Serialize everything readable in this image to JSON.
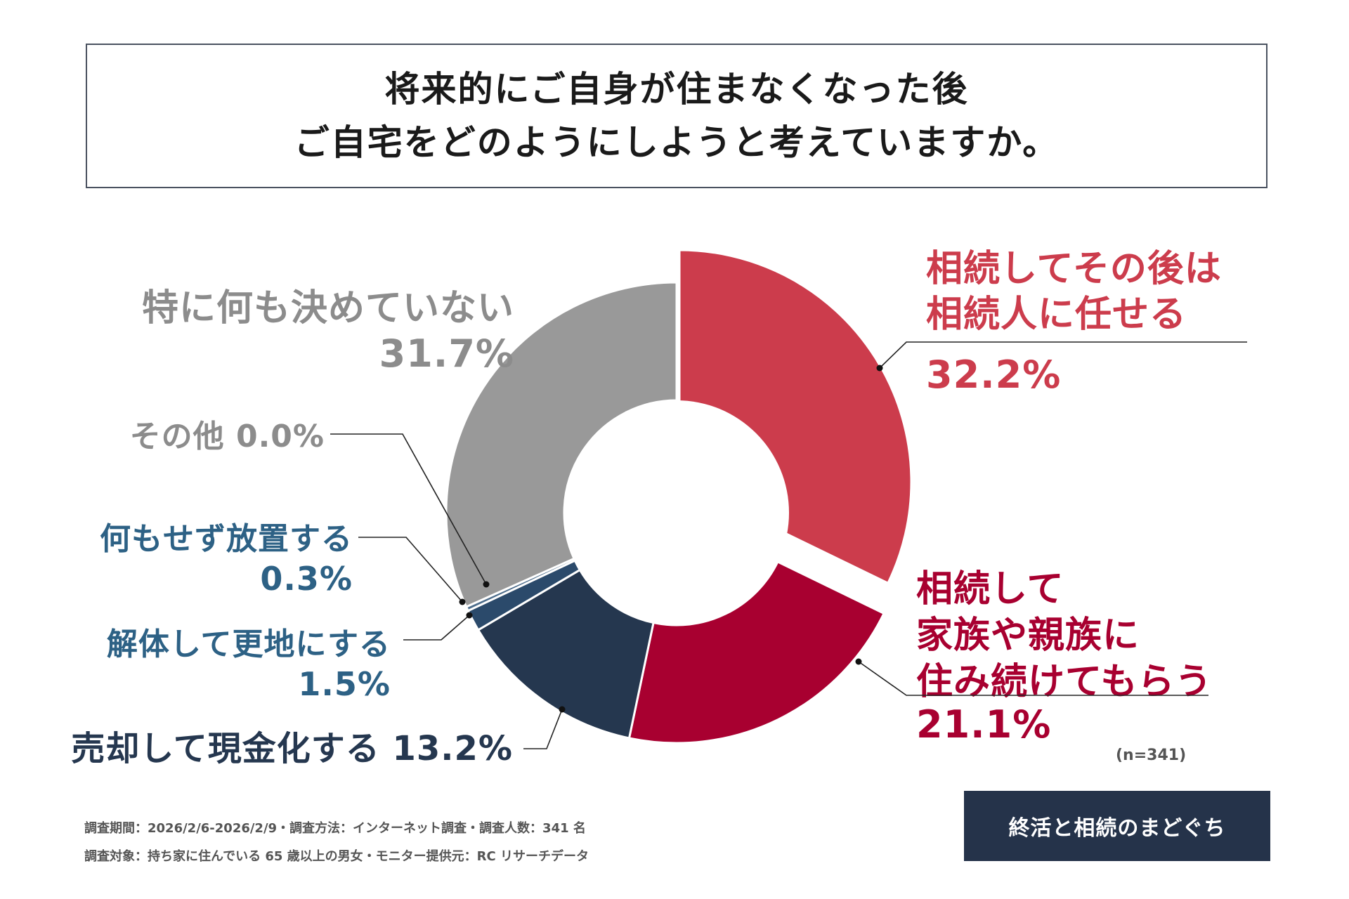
{
  "title": {
    "line1": "将来的にご自身が住まなくなった後",
    "line2": "ご自宅をどのようにしようと考えていますか。"
  },
  "chart_data": {
    "type": "pie",
    "subtype": "donut",
    "title": "将来的にご自身が住まなくなった後 ご自宅をどのようにしようと考えていますか。",
    "sample_size": "(n=341)",
    "slices": [
      {
        "label": "相続してその後は相続人に任せる",
        "label_lines": [
          "相続してその後は",
          "相続人に任せる"
        ],
        "value": 32.2,
        "value_label": "32.2%",
        "color": "#cc3c4c",
        "text_color": "#cc3c4c"
      },
      {
        "label": "相続して家族や親族に住み続けてもらう",
        "label_lines": [
          "相続して",
          "家族や親族に",
          "住み続けてもらう"
        ],
        "value": 21.1,
        "value_label": "21.1%",
        "color": "#a80030",
        "text_color": "#a80030"
      },
      {
        "label": "売却して現金化する",
        "label_lines": [
          "売却して現金化する 13.2%"
        ],
        "value": 13.2,
        "value_label": "13.2%",
        "color": "#25374f",
        "text_color": "#25374f"
      },
      {
        "label": "解体して更地にする",
        "label_lines": [
          "解体して更地にする"
        ],
        "value": 1.5,
        "value_label": "1.5%",
        "color": "#2b4a6b",
        "text_color": "#2d6185"
      },
      {
        "label": "何もせず放置する",
        "label_lines": [
          "何もせず放置する"
        ],
        "value": 0.3,
        "value_label": "0.3%",
        "color": "#4d6d8c",
        "text_color": "#2d6185"
      },
      {
        "label": "その他",
        "label_lines": [
          "その他  0.0%"
        ],
        "value": 0.0,
        "value_label": "0.0%",
        "color": "#999999",
        "text_color": "#8c8c8c"
      },
      {
        "label": "特に何も決めていない",
        "label_lines": [
          "特に何も決めていない"
        ],
        "value": 31.7,
        "value_label": "31.7%",
        "color": "#999999",
        "text_color": "#8c8c8c"
      }
    ]
  },
  "footnotes": {
    "line1": "調査期間：2026/2/6-2026/2/9・調査方法：インターネット調査・調査人数：341 名",
    "line2": "調査対象：持ち家に住んでいる 65 歳以上の男女・モニター提供元：RC リサーチデータ"
  },
  "logo": {
    "text": "終活と相続のまどぐち"
  }
}
